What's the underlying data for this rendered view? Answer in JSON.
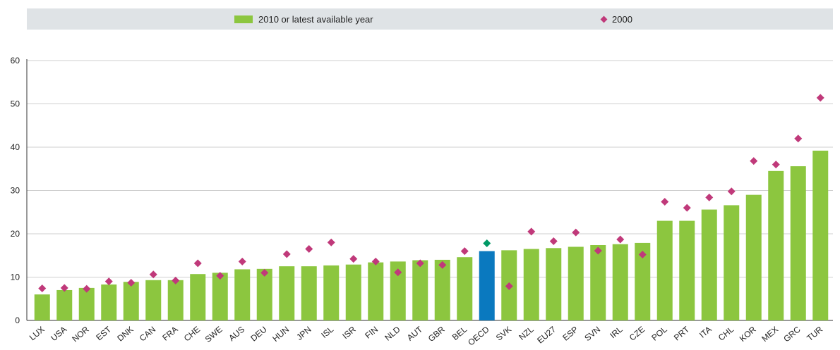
{
  "legend": {
    "series_2010_label": "2010 or latest available year",
    "series_2000_label": "2000"
  },
  "colors": {
    "bar": "#8cc63f",
    "bar_highlight": "#0a79bf",
    "marker": "#c0397a",
    "marker_highlight": "#009966",
    "grid": "#cfcfcf",
    "axis": "#333333"
  },
  "chart_data": {
    "type": "bar",
    "ylim": [
      0,
      60
    ],
    "yticks": [
      0,
      10,
      20,
      30,
      40,
      50,
      60
    ],
    "grid": true,
    "legend_position": "top",
    "highlight_category": "OECD",
    "categories": [
      "LUX",
      "USA",
      "NOR",
      "EST",
      "DNK",
      "CAN",
      "FRA",
      "CHE",
      "SWE",
      "AUS",
      "DEU",
      "HUN",
      "JPN",
      "ISL",
      "ISR",
      "FIN",
      "NLD",
      "AUT",
      "GBR",
      "BEL",
      "OECD",
      "SVK",
      "NZL",
      "EU27",
      "ESP",
      "SVN",
      "IRL",
      "CZE",
      "POL",
      "PRT",
      "ITA",
      "CHL",
      "KOR",
      "MEX",
      "GRC",
      "TUR"
    ],
    "series": [
      {
        "name": "2010 or latest available year",
        "kind": "bar",
        "values": [
          6.0,
          7.0,
          7.5,
          8.3,
          8.9,
          9.3,
          9.3,
          10.7,
          11.0,
          11.8,
          11.9,
          12.5,
          12.5,
          12.7,
          12.9,
          13.4,
          13.6,
          13.9,
          14.0,
          14.6,
          16.0,
          16.2,
          16.5,
          16.7,
          17.0,
          17.4,
          17.6,
          17.9,
          23.0,
          23.0,
          25.6,
          26.6,
          29.0,
          34.5,
          35.6,
          39.2
        ]
      },
      {
        "name": "2000",
        "kind": "marker",
        "values": [
          7.4,
          7.5,
          7.3,
          9.0,
          8.7,
          10.6,
          9.2,
          13.2,
          10.3,
          13.6,
          11.0,
          15.3,
          16.5,
          18.0,
          14.2,
          13.6,
          11.1,
          13.2,
          12.8,
          16.0,
          17.8,
          7.9,
          20.5,
          18.3,
          20.3,
          16.1,
          18.7,
          15.2,
          27.4,
          26.0,
          28.4,
          29.8,
          36.8,
          36.0,
          42.0,
          51.4
        ]
      }
    ]
  }
}
